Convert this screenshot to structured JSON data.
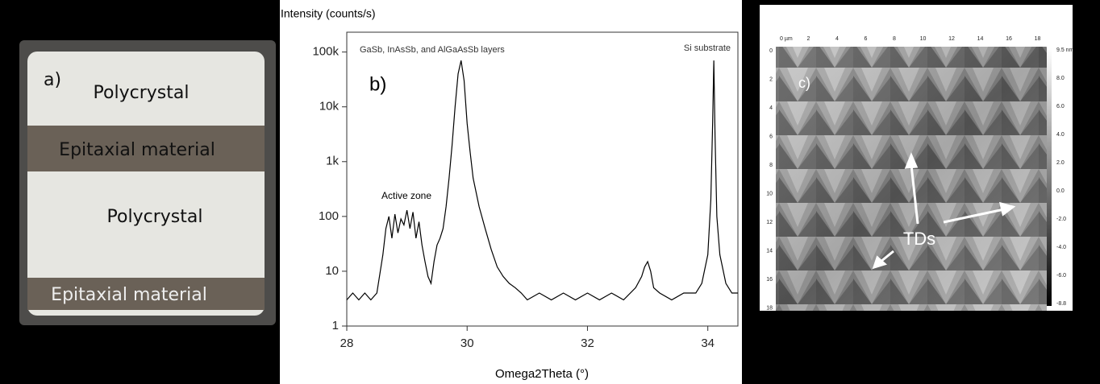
{
  "panel_a": {
    "label": "a)",
    "regions": [
      "Polycrystal",
      "Epitaxial material",
      "Polycrystal",
      "Epitaxial material"
    ]
  },
  "chart_data": {
    "type": "line",
    "panel_label": "b)",
    "y_label": "Intensity (counts/s)",
    "x_label": "Omega2Theta (°)",
    "annotations": [
      "GaSb, InAsSb, and AlGaAsSb layers",
      "Si substrate",
      "Active zone"
    ],
    "color": "#000000",
    "yscale": "log",
    "xlim": [
      28,
      34.5
    ],
    "ylim": [
      1,
      230000
    ],
    "xticks": [
      28,
      30,
      32,
      34
    ],
    "yticks": [
      1,
      10,
      100,
      {
        "value": 1000,
        "label": "1k"
      },
      {
        "value": 10000,
        "label": "10k"
      },
      {
        "value": 100000,
        "label": "100k"
      }
    ],
    "x": [
      28.0,
      28.1,
      28.2,
      28.3,
      28.4,
      28.5,
      28.6,
      28.65,
      28.7,
      28.75,
      28.8,
      28.85,
      28.9,
      28.95,
      29.0,
      29.05,
      29.1,
      29.15,
      29.2,
      29.25,
      29.3,
      29.35,
      29.4,
      29.45,
      29.5,
      29.55,
      29.6,
      29.65,
      29.7,
      29.75,
      29.8,
      29.85,
      29.9,
      29.95,
      30.0,
      30.05,
      30.1,
      30.2,
      30.3,
      30.4,
      30.5,
      30.6,
      30.7,
      30.8,
      30.9,
      31.0,
      31.2,
      31.4,
      31.6,
      31.8,
      32.0,
      32.2,
      32.4,
      32.6,
      32.8,
      32.9,
      32.95,
      33.0,
      33.05,
      33.1,
      33.2,
      33.4,
      33.6,
      33.8,
      33.9,
      34.0,
      34.05,
      34.08,
      34.1,
      34.12,
      34.15,
      34.2,
      34.3,
      34.4,
      34.5
    ],
    "values": [
      3,
      4,
      3,
      4,
      3,
      4,
      20,
      60,
      100,
      40,
      110,
      50,
      90,
      70,
      130,
      60,
      120,
      40,
      80,
      30,
      15,
      8,
      6,
      15,
      30,
      40,
      60,
      150,
      500,
      2000,
      10000,
      40000,
      70000,
      30000,
      5000,
      1500,
      500,
      150,
      60,
      25,
      12,
      8,
      6,
      5,
      4,
      3,
      4,
      3,
      4,
      3,
      4,
      3,
      4,
      3,
      5,
      8,
      12,
      15,
      10,
      5,
      4,
      3,
      4,
      4,
      6,
      20,
      200,
      5000,
      70000,
      3000,
      100,
      20,
      6,
      4,
      4
    ]
  },
  "panel_c": {
    "label": "c)",
    "annotation": "TDs",
    "x_ticks": [
      "0 µm",
      "2",
      "4",
      "6",
      "8",
      "10",
      "12",
      "14",
      "16",
      "18"
    ],
    "y_ticks": [
      "0",
      "2",
      "4",
      "6",
      "8",
      "10",
      "12",
      "14",
      "16",
      "18"
    ],
    "colorbar_ticks": [
      "9.5 nm",
      "8.0",
      "6.0",
      "4.0",
      "2.0",
      "0.0",
      "-2.0",
      "-4.0",
      "-6.0",
      "-8.8"
    ]
  }
}
